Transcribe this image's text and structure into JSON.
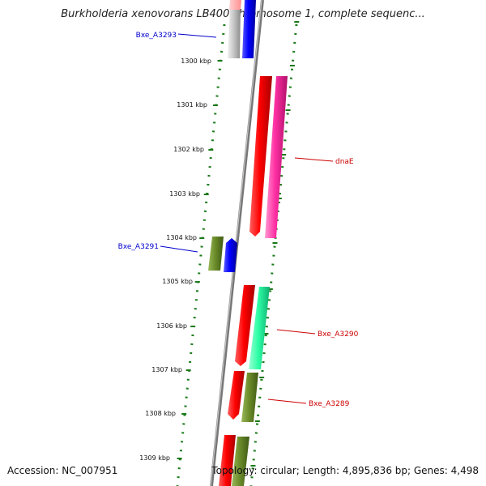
{
  "title": "Burkholderia xenovorans LB400 chromosome 1, complete sequenc...",
  "footer": {
    "accession": "Accession: NC_007951",
    "summary": "Topology: circular; Length: 4,895,836 bp; Genes: 4,498"
  },
  "ruler": {
    "ticks": [
      "1300 kbp",
      "1301 kbp",
      "1302 kbp",
      "1303 kbp",
      "1304 kbp",
      "1305 kbp",
      "1306 kbp",
      "1307 kbp",
      "1308 kbp",
      "1309 kbp"
    ]
  },
  "gene_labels": [
    {
      "name": "Bxe_A3293",
      "color": "#0000cc"
    },
    {
      "name": "dnaE",
      "color": "#cc0000"
    },
    {
      "name": "Bxe_A3291",
      "color": "#0000cc"
    },
    {
      "name": "Bxe_A3290",
      "color": "#cc0000"
    },
    {
      "name": "Bxe_A3289",
      "color": "#cc0000"
    }
  ],
  "colors": {
    "backbone": "#8a8a8a",
    "ruler_tick": "#1a7a1a",
    "dotted_guides": "#1a7a1a",
    "gene_red": "#ff0000",
    "gene_magenta": "#ff3fa8",
    "gene_olive": "#6b8c2a",
    "gene_blue": "#0000ff",
    "gene_teal": "#2dffa6",
    "gene_gray": "#bfbfbf"
  }
}
